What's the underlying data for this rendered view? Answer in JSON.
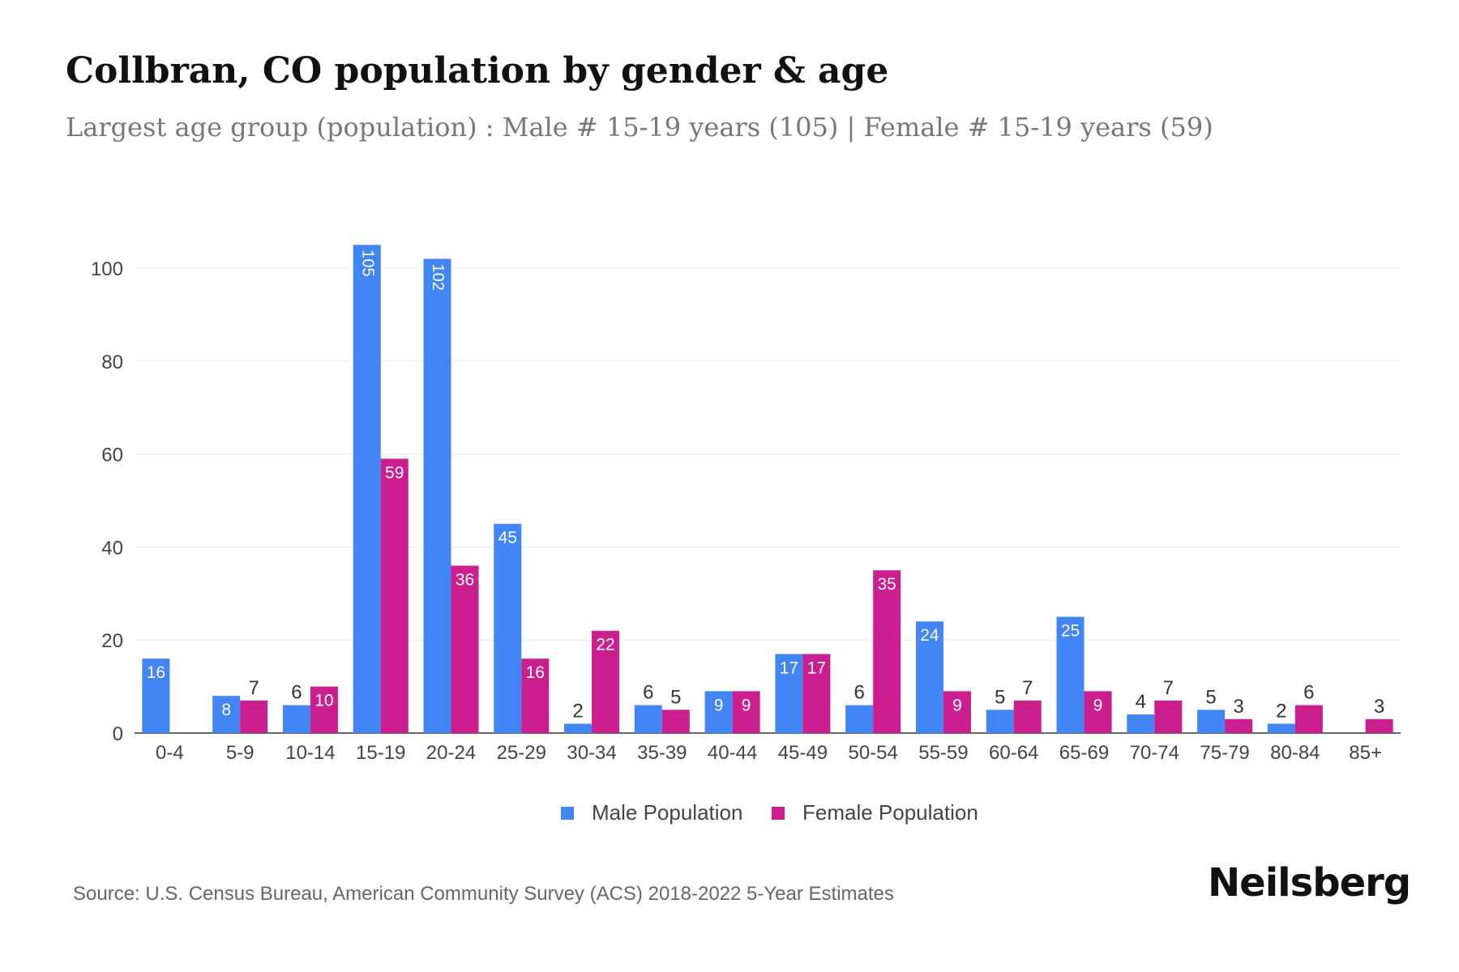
{
  "title": "Collbran, CO population by gender & age",
  "subtitle": "Largest age group (population) : Male # 15-19 years (105) | Female # 15-19 years (59)",
  "source": "Source: U.S. Census Bureau, American Community Survey (ACS) 2018-2022 5-Year Estimates",
  "logo": "Neilsberg",
  "chart_data": {
    "type": "bar",
    "title": "Collbran, CO population by gender & age",
    "categories": [
      "0-4",
      "5-9",
      "10-14",
      "15-19",
      "20-24",
      "25-29",
      "30-34",
      "35-39",
      "40-44",
      "45-49",
      "50-54",
      "55-59",
      "60-64",
      "65-69",
      "70-74",
      "75-79",
      "80-84",
      "85+"
    ],
    "series": [
      {
        "name": "Male Population",
        "color": "#4285f4",
        "values": [
          16,
          8,
          6,
          105,
          102,
          45,
          2,
          6,
          9,
          17,
          6,
          24,
          5,
          25,
          4,
          5,
          2,
          0
        ]
      },
      {
        "name": "Female Population",
        "color": "#cc1f8f",
        "values": [
          0,
          7,
          10,
          59,
          36,
          16,
          22,
          5,
          9,
          17,
          35,
          9,
          7,
          9,
          7,
          3,
          6,
          3
        ]
      }
    ],
    "yticks": [
      0,
      20,
      40,
      60,
      80,
      100
    ],
    "ylim": [
      0,
      110
    ],
    "grid": true,
    "legend": "bottom-center",
    "xlabel": "",
    "ylabel": ""
  }
}
